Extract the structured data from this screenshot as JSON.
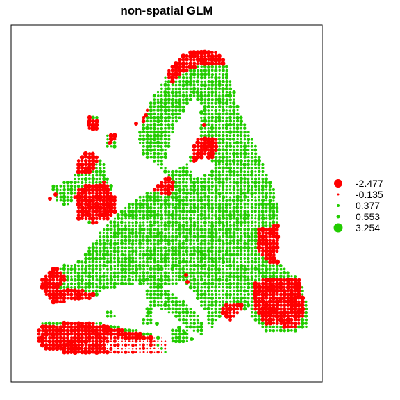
{
  "title": "non-spatial GLM",
  "colors": {
    "negative": "#ff0000",
    "positive": "#22cc00",
    "frame": "#000000"
  },
  "legend": [
    {
      "label": "-2.477",
      "color": "#ff0000",
      "dot_size": "large"
    },
    {
      "label": "-0.135",
      "color": "#ff0000",
      "dot_size": "tiny"
    },
    {
      "label": "0.377",
      "color": "#22cc00",
      "dot_size": "small"
    },
    {
      "label": "0.553",
      "color": "#22cc00",
      "dot_size": "small"
    },
    {
      "label": "3.254",
      "color": "#22cc00",
      "dot_size": "large"
    }
  ]
}
